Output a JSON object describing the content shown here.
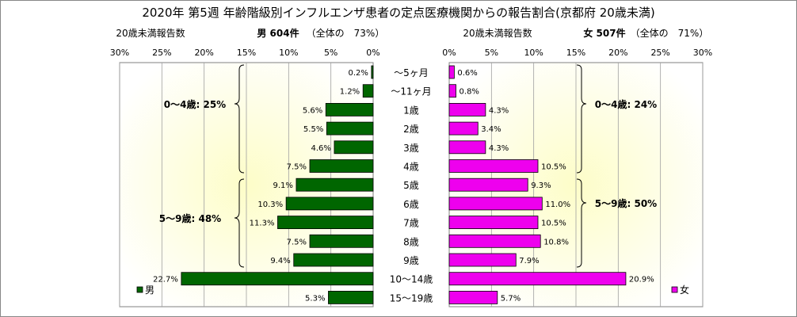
{
  "chart_data": {
    "type": "bar",
    "title": "2020年 第5週 年齢階級別インフルエンザ患者の定点医療機関からの報告割合(京都府 20歳未満)",
    "categories": [
      "〜5ヶ月",
      "〜11ヶ月",
      "1歳",
      "2歳",
      "3歳",
      "4歳",
      "5歳",
      "6歳",
      "7歳",
      "8歳",
      "9歳",
      "10〜14歳",
      "15〜19歳"
    ],
    "xlim": [
      0,
      30
    ],
    "xticks": [
      "30%",
      "25%",
      "20%",
      "15%",
      "10%",
      "5%",
      "0%"
    ],
    "xticks_right": [
      "0%",
      "5%",
      "10%",
      "15%",
      "20%",
      "25%",
      "30%"
    ],
    "grid": true,
    "series": [
      {
        "name": "男",
        "side": "left",
        "values": [
          0.2,
          1.2,
          5.6,
          5.5,
          4.6,
          7.5,
          9.1,
          10.3,
          11.3,
          7.5,
          9.4,
          22.7,
          5.3
        ],
        "labels": [
          "0.2%",
          "1.2%",
          "5.6%",
          "5.5%",
          "4.6%",
          "7.5%",
          "9.1%",
          "10.3%",
          "11.3%",
          "7.5%",
          "9.4%",
          "22.7%",
          "5.3%"
        ],
        "color": "#006600",
        "header_left": "20歳未満報告数",
        "header_count": "男 604件",
        "header_share": "（全体の　73%）",
        "groups": [
          "0〜4歳: 25%",
          "5〜9歳: 48%"
        ]
      },
      {
        "name": "女",
        "side": "right",
        "values": [
          0.6,
          0.8,
          4.3,
          3.4,
          4.3,
          10.5,
          9.3,
          11.0,
          10.5,
          10.8,
          7.9,
          20.9,
          5.7
        ],
        "labels": [
          "0.6%",
          "0.8%",
          "4.3%",
          "3.4%",
          "4.3%",
          "10.5%",
          "9.3%",
          "11.0%",
          "10.5%",
          "10.8%",
          "7.9%",
          "20.9%",
          "5.7%"
        ],
        "color": "#ee00ee",
        "header_left": "20歳未満報告数",
        "header_count": "女 507件",
        "header_share": "（全体の　71%）",
        "groups": [
          "0〜4歳: 24%",
          "5〜9歳: 50%"
        ]
      }
    ]
  }
}
